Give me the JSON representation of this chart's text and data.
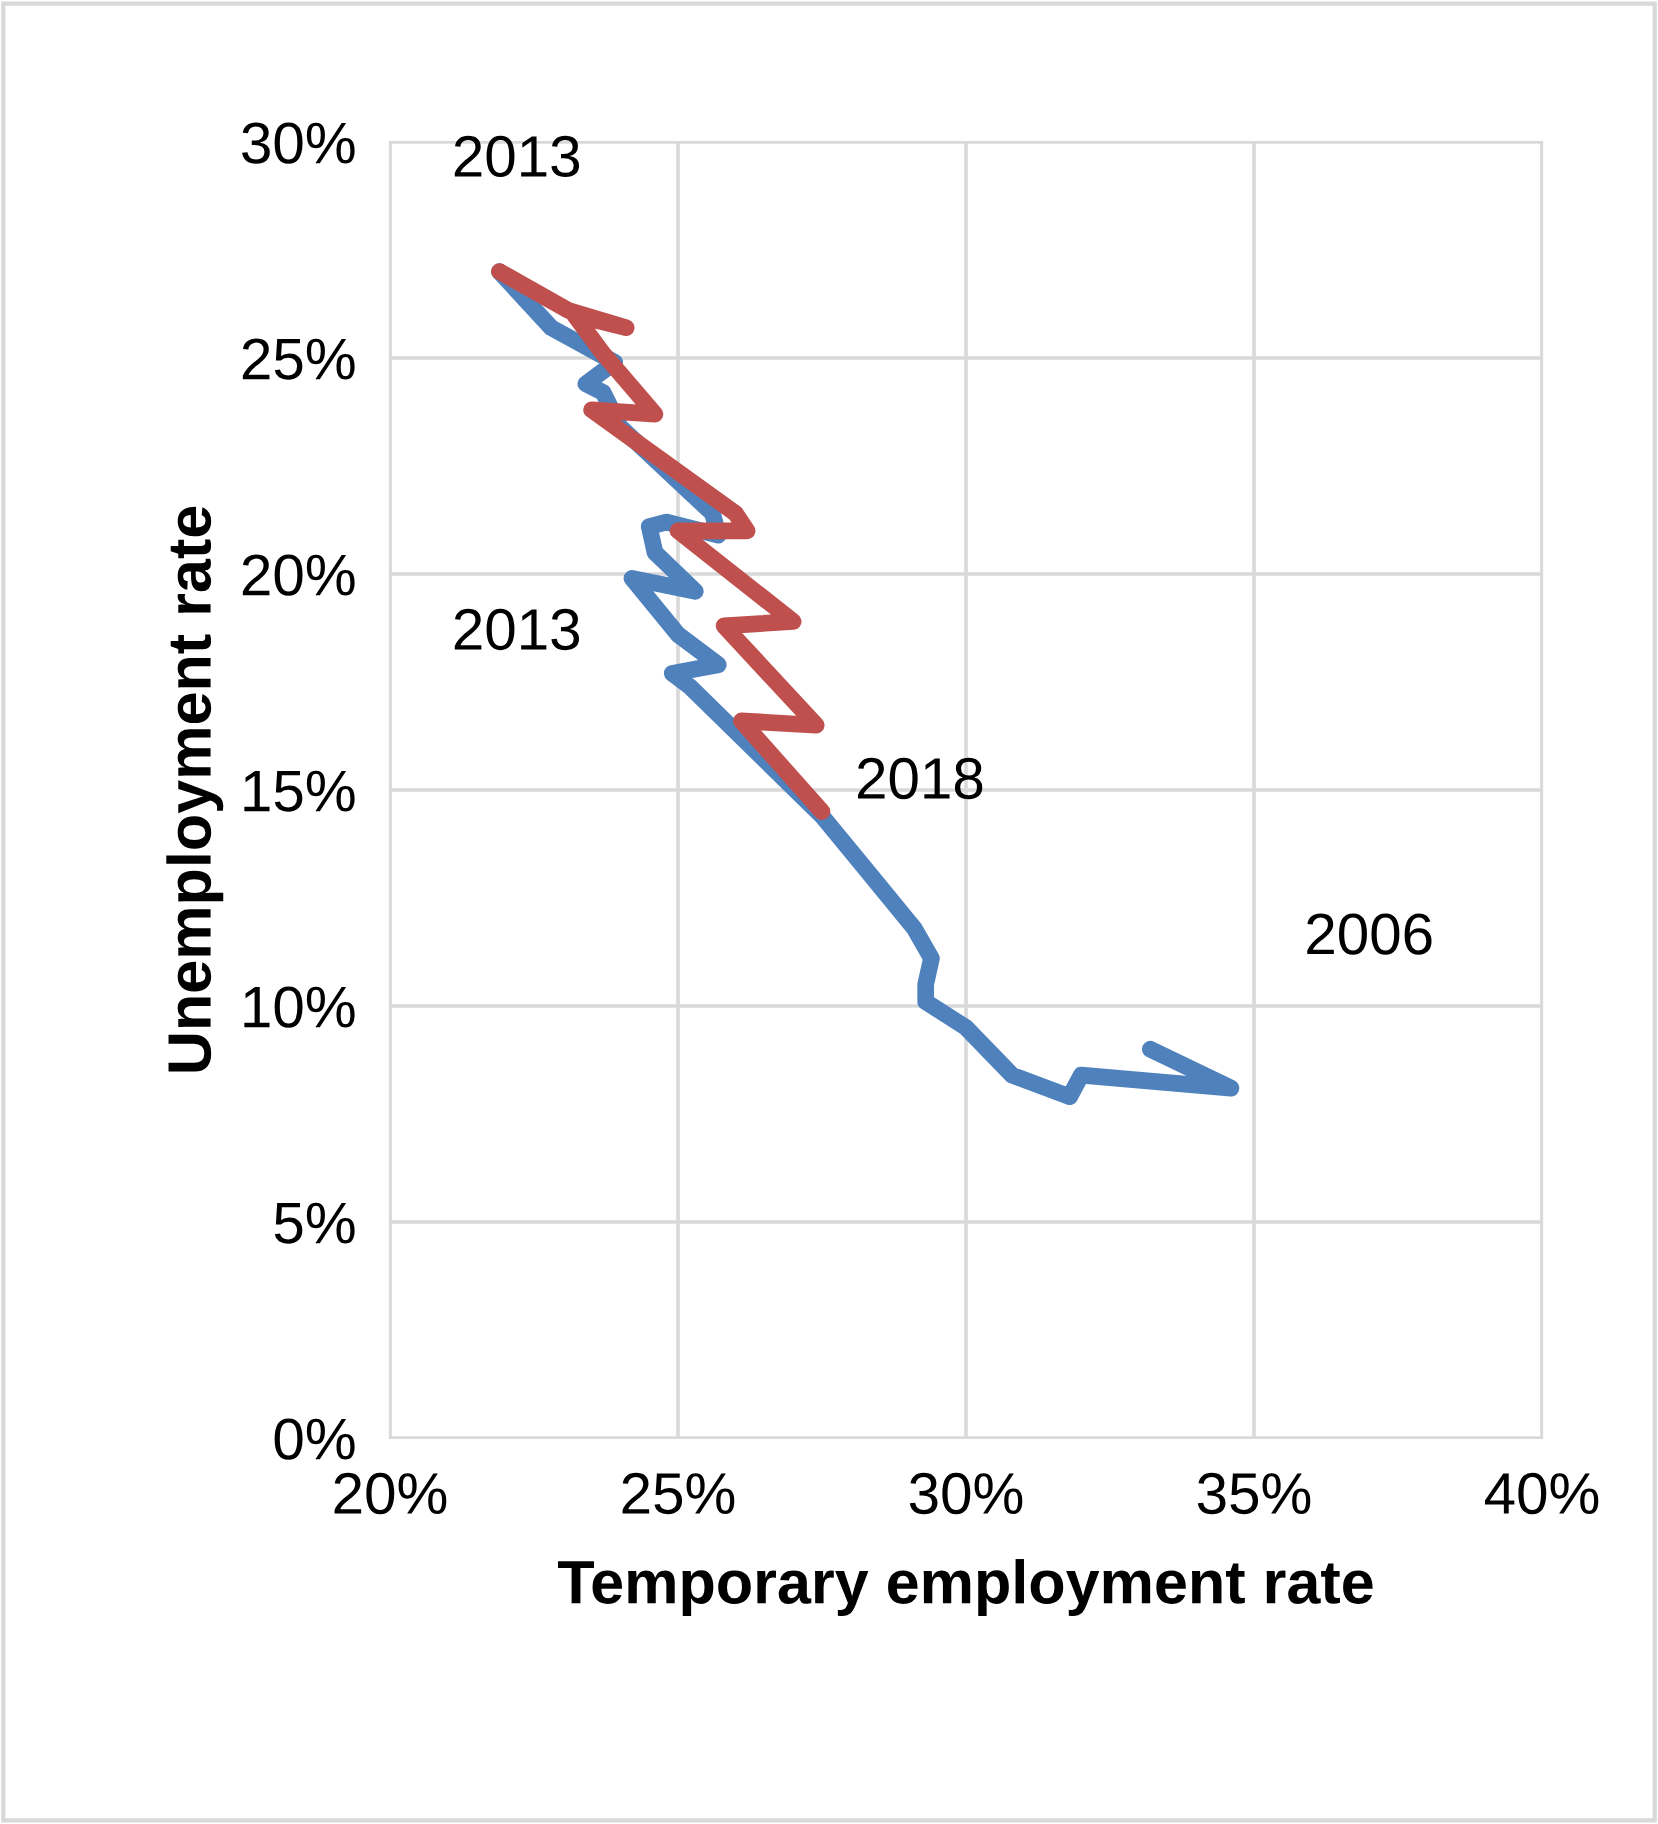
{
  "chart_data": {
    "type": "line",
    "xlabel": "Temporary employment rate",
    "ylabel": "Unemployment rate",
    "xlim": [
      20,
      40
    ],
    "xticks": [
      {
        "value": 20,
        "label": "20%"
      },
      {
        "value": 25,
        "label": "25%"
      },
      {
        "value": 30,
        "label": "30%"
      },
      {
        "value": 35,
        "label": "35%"
      },
      {
        "value": 40,
        "label": "40%"
      }
    ],
    "ylim": [
      0,
      30
    ],
    "yticks": [
      {
        "value": 0,
        "label": "0%"
      },
      {
        "value": 5,
        "label": "5%"
      },
      {
        "value": 10,
        "label": "10%"
      },
      {
        "value": 15,
        "label": "15%"
      },
      {
        "value": 20,
        "label": "20%"
      },
      {
        "value": 25,
        "label": "25%"
      },
      {
        "value": 30,
        "label": "30%"
      }
    ],
    "grid": true,
    "marker": "none",
    "line_style": "solid",
    "series": [
      {
        "color": "#4f81bd",
        "x": [
          33.2,
          34.6,
          32.0,
          31.8,
          30.8,
          30.0,
          29.3,
          29.3,
          29.4,
          29.1,
          28.3,
          27.5,
          25.2,
          24.9,
          25.7,
          25.0,
          24.2,
          25.3,
          24.6,
          24.5,
          24.8,
          25.7,
          25.6,
          24.0,
          23.7,
          23.4,
          23.9,
          22.8,
          21.9
        ],
        "values": [
          9.0,
          8.1,
          8.4,
          7.9,
          8.4,
          9.5,
          10.1,
          10.5,
          11.1,
          11.8,
          13.1,
          14.4,
          17.4,
          17.7,
          17.9,
          18.6,
          19.9,
          19.6,
          20.5,
          21.1,
          21.2,
          20.9,
          21.4,
          23.4,
          24.2,
          24.4,
          24.9,
          25.7,
          27.0
        ]
      },
      {
        "color": "#c0504d",
        "x": [
          21.9,
          23.1,
          24.1,
          23.2,
          23.7,
          24.6,
          23.5,
          26.0,
          26.2,
          25.0,
          27.0,
          25.8,
          27.4,
          26.1,
          27.5
        ],
        "values": [
          27.0,
          26.1,
          25.7,
          26.0,
          25.1,
          23.7,
          23.8,
          21.4,
          21.0,
          21.0,
          18.9,
          18.8,
          16.5,
          16.6,
          14.5
        ]
      }
    ],
    "annotations": [
      "2013",
      "2013",
      "2018",
      "2006"
    ]
  }
}
